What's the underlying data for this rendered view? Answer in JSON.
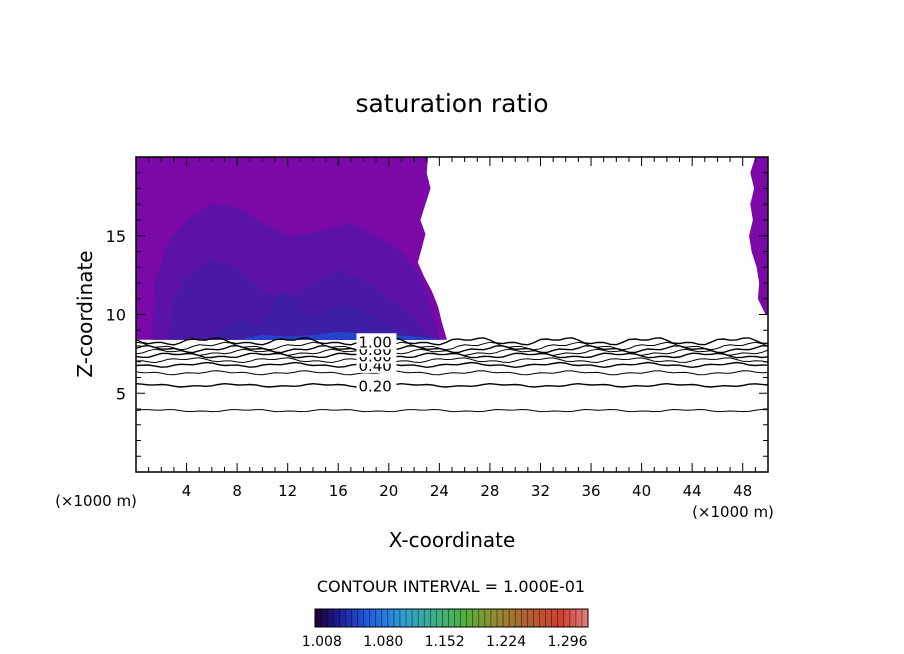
{
  "chart_data": {
    "type": "contour",
    "title": "saturation ratio",
    "xlabel": "X-coordinate",
    "ylabel": "Z-coordinate",
    "x_unit": "(×1000 m)",
    "x_unit_right": "(×1000 m)",
    "xlim": [
      0,
      50
    ],
    "ylim": [
      0,
      20
    ],
    "x_ticks": [
      4,
      8,
      12,
      16,
      20,
      24,
      28,
      32,
      36,
      40,
      44,
      48
    ],
    "y_ticks": [
      5,
      10,
      15
    ],
    "contour_interval_text": "CONTOUR INTERVAL = 1.000E-01",
    "contour_lines": [
      {
        "value": 0.1,
        "label": "",
        "z": 3.9
      },
      {
        "value": 0.2,
        "label": "0.20",
        "z": 5.5
      },
      {
        "value": 0.3,
        "label": "",
        "z": 6.3
      },
      {
        "value": 0.4,
        "label": "0.40",
        "z": 6.8
      },
      {
        "value": 0.5,
        "label": "",
        "z": 7.1
      },
      {
        "value": 0.6,
        "label": "0.60",
        "z": 7.4
      },
      {
        "value": 0.7,
        "label": "",
        "z": 7.6
      },
      {
        "value": 0.8,
        "label": "0.80",
        "z": 7.8
      },
      {
        "value": 0.9,
        "label": "",
        "z": 8.0
      },
      {
        "value": 1.0,
        "label": "1.00",
        "z": 8.3
      }
    ],
    "colorbar": {
      "tick_labels": [
        "1.008",
        "1.080",
        "1.152",
        "1.224",
        "1.296"
      ],
      "range": [
        1.0,
        1.32
      ]
    },
    "fill_colors": {
      "outer": "#7a09a8",
      "level1": "#5c12a6",
      "level2": "#4a18a4",
      "level3": "#3f1ea6",
      "base": "#2244cc"
    }
  }
}
